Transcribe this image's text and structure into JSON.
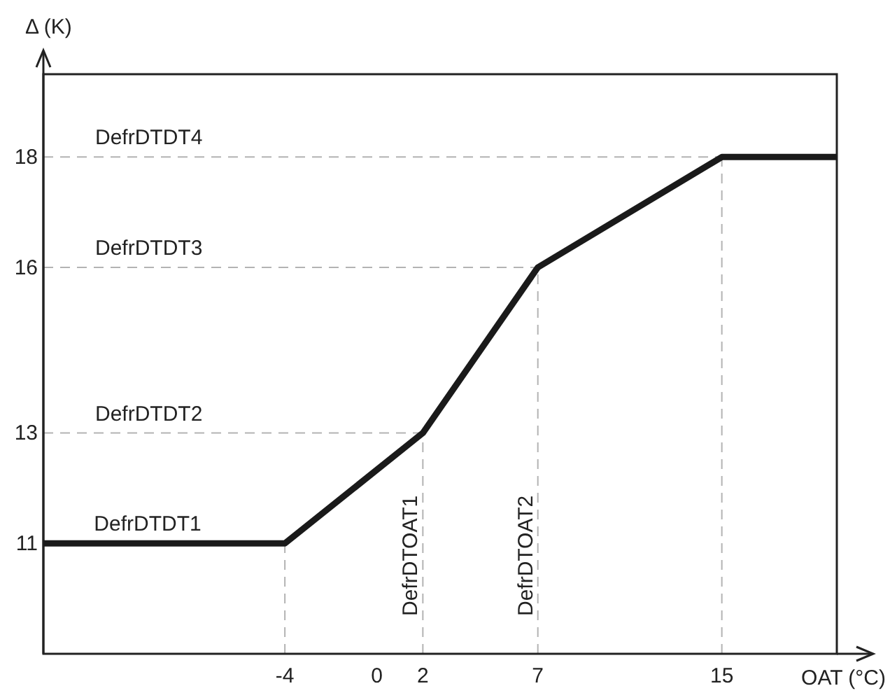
{
  "chart_data": {
    "type": "line",
    "xlabel": "OAT (°C)",
    "ylabel": "Δ (K)",
    "x": [
      -14.5,
      -4,
      2,
      7,
      15,
      20
    ],
    "series": [
      {
        "color": "#1a1a1a",
        "values": [
          11,
          11,
          13,
          16,
          18,
          18
        ]
      }
    ],
    "xlim": [
      -14.5,
      20
    ],
    "ylim": [
      9,
      19.5
    ],
    "xticks": [
      -4,
      0,
      2,
      7,
      15
    ],
    "yticks": [
      11,
      13,
      16,
      18
    ],
    "grid": false,
    "marker": "none",
    "line_style": "solid",
    "annotations": [
      {
        "text": "DefrDTDT1",
        "x": -12.3,
        "y": 11
      }
    ],
    "ref_lines": [
      {
        "axis": "y",
        "value": 13,
        "label": "DefrDTDT2",
        "color": "#b3b3b3",
        "line_style": "dashed"
      },
      {
        "axis": "y",
        "value": 16,
        "label": "DefrDTDT3",
        "color": "#b3b3b3",
        "line_style": "dashed"
      },
      {
        "axis": "y",
        "value": 18,
        "label": "DefrDTDT4",
        "color": "#b3b3b3",
        "line_style": "dashed"
      },
      {
        "axis": "x",
        "value": -4,
        "label": null,
        "color": "#b3b3b3",
        "line_style": "dashed"
      },
      {
        "axis": "x",
        "value": 2,
        "label": "DefrDTOAT1",
        "color": "#b3b3b3",
        "line_style": "dashed"
      },
      {
        "axis": "x",
        "value": 7,
        "label": "DefrDTOAT2",
        "color": "#b3b3b3",
        "line_style": "dashed"
      },
      {
        "axis": "x",
        "value": 15,
        "label": null,
        "color": "#b3b3b3",
        "line_style": "dashed"
      }
    ]
  }
}
